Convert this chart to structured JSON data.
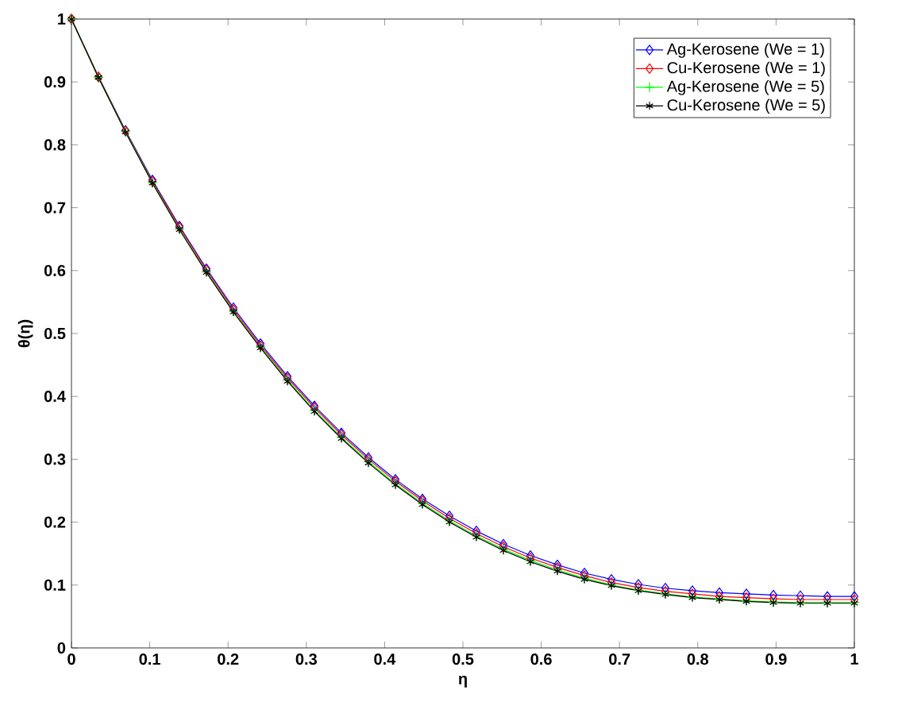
{
  "chart_data": {
    "type": "line",
    "xlabel": "η",
    "ylabel": "θ(η)",
    "xlim": [
      0,
      1
    ],
    "ylim": [
      0,
      1
    ],
    "xticks": [
      0,
      0.1,
      0.2,
      0.3,
      0.4,
      0.5,
      0.6,
      0.7,
      0.8,
      0.9,
      1
    ],
    "yticks": [
      0,
      0.1,
      0.2,
      0.3,
      0.4,
      0.5,
      0.6,
      0.7,
      0.8,
      0.9,
      1
    ],
    "grid": false,
    "legend": "top right",
    "x": [
      0,
      0.0345,
      0.069,
      0.1034,
      0.1379,
      0.1724,
      0.2069,
      0.2414,
      0.2759,
      0.3103,
      0.3448,
      0.3793,
      0.4138,
      0.4483,
      0.4828,
      0.5172,
      0.5517,
      0.5862,
      0.6207,
      0.6552,
      0.6897,
      0.7241,
      0.7586,
      0.7931,
      0.8276,
      0.8621,
      0.8966,
      0.931,
      0.9655,
      1
    ],
    "series": [
      {
        "name": "Ag-Kerosene (We = 1)",
        "color": "#0000ff",
        "marker": "diamond",
        "values": [
          1,
          0.908,
          0.823,
          0.744,
          0.671,
          0.603,
          0.541,
          0.484,
          0.432,
          0.385,
          0.342,
          0.303,
          0.268,
          0.237,
          0.21,
          0.186,
          0.165,
          0.147,
          0.132,
          0.119,
          0.109,
          0.101,
          0.095,
          0.091,
          0.088,
          0.086,
          0.084,
          0.083,
          0.082,
          0.082
        ]
      },
      {
        "name": "Cu-Kerosene (We = 1)",
        "color": "#ff0000",
        "marker": "diamond",
        "values": [
          1,
          0.908,
          0.822,
          0.742,
          0.669,
          0.601,
          0.538,
          0.481,
          0.429,
          0.382,
          0.339,
          0.3,
          0.265,
          0.234,
          0.206,
          0.182,
          0.161,
          0.143,
          0.128,
          0.115,
          0.104,
          0.096,
          0.09,
          0.086,
          0.082,
          0.08,
          0.078,
          0.077,
          0.077,
          0.077
        ]
      },
      {
        "name": "Ag-Kerosene (We = 5)",
        "color": "#00ff00",
        "marker": "plus",
        "values": [
          1,
          0.907,
          0.821,
          0.74,
          0.666,
          0.598,
          0.535,
          0.478,
          0.426,
          0.378,
          0.335,
          0.296,
          0.261,
          0.23,
          0.202,
          0.178,
          0.157,
          0.139,
          0.124,
          0.111,
          0.1,
          0.092,
          0.086,
          0.081,
          0.078,
          0.075,
          0.073,
          0.072,
          0.072,
          0.072
        ]
      },
      {
        "name": "Cu-Kerosene (We = 5)",
        "color": "#000000",
        "marker": "cross",
        "values": [
          1,
          0.907,
          0.82,
          0.739,
          0.665,
          0.597,
          0.534,
          0.477,
          0.424,
          0.376,
          0.333,
          0.294,
          0.259,
          0.228,
          0.2,
          0.176,
          0.155,
          0.137,
          0.122,
          0.109,
          0.099,
          0.091,
          0.085,
          0.08,
          0.077,
          0.074,
          0.072,
          0.071,
          0.071,
          0.071
        ]
      }
    ]
  }
}
